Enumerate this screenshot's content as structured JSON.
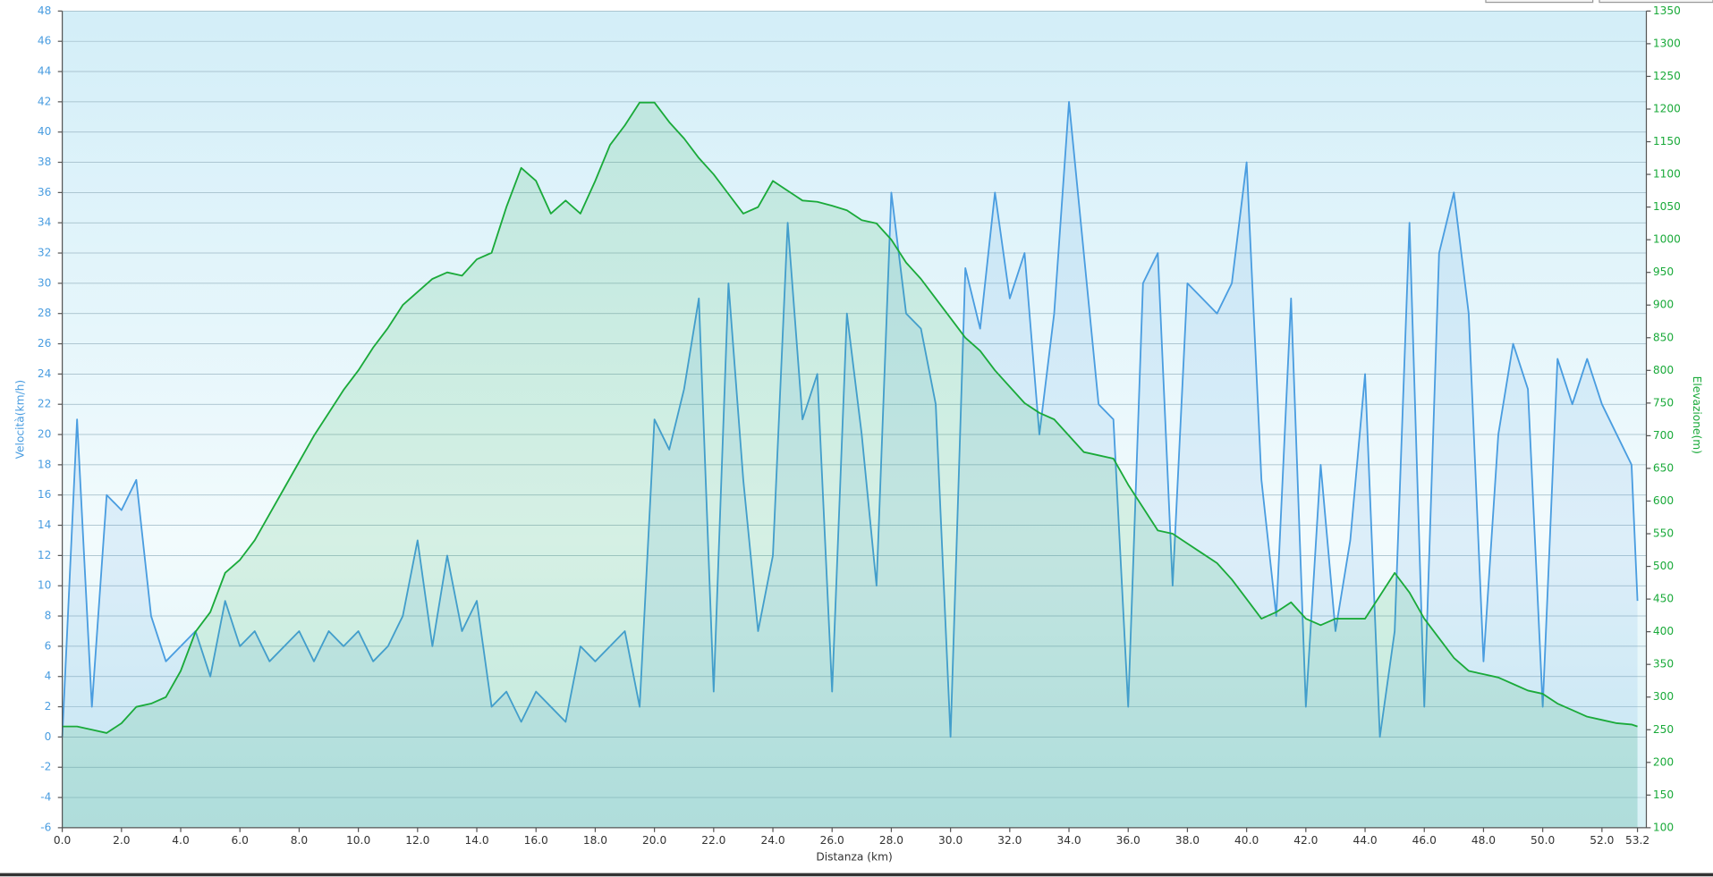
{
  "chart_data": {
    "type": "line",
    "x_label": "Distanza  (km)",
    "y_label": "Velocità(km/h)",
    "y2_label": "Elevazione(m)",
    "x": [
      0,
      0.5,
      1,
      1.5,
      2,
      2.5,
      3,
      3.5,
      4,
      4.5,
      5,
      5.5,
      6,
      6.5,
      7,
      7.5,
      8,
      8.5,
      9,
      9.5,
      10,
      10.5,
      11,
      11.5,
      12,
      12.5,
      13,
      13.5,
      14,
      14.5,
      15,
      15.5,
      16,
      16.5,
      17,
      17.5,
      18,
      18.5,
      19,
      19.5,
      20,
      20.5,
      21,
      21.5,
      22,
      22.5,
      23,
      23.5,
      24,
      24.5,
      25,
      25.5,
      26,
      26.5,
      27,
      27.5,
      28,
      28.5,
      29,
      29.5,
      30,
      30.5,
      31,
      31.5,
      32,
      32.5,
      33,
      33.5,
      34,
      34.5,
      35,
      35.5,
      36,
      36.5,
      37,
      37.5,
      38,
      38.5,
      39,
      39.5,
      40,
      40.5,
      41,
      41.5,
      42,
      42.5,
      43,
      43.5,
      44,
      44.5,
      45,
      45.5,
      46,
      46.5,
      47,
      47.5,
      48,
      48.5,
      49,
      49.5,
      50,
      50.5,
      51,
      51.5,
      52,
      52.5,
      53,
      53.2
    ],
    "series": [
      {
        "name": "Velocità",
        "color": "#4a9de0",
        "values": [
          0,
          21,
          2,
          16,
          15,
          17,
          8,
          5,
          6,
          7,
          4,
          9,
          6,
          7,
          5,
          6,
          7,
          5,
          7,
          6,
          7,
          5,
          6,
          8,
          13,
          6,
          12,
          7,
          9,
          2,
          3,
          1,
          3,
          2,
          1,
          6,
          5,
          6,
          7,
          2,
          21,
          19,
          23,
          29,
          3,
          30,
          17,
          7,
          12,
          34,
          21,
          24,
          3,
          28,
          20,
          10,
          36,
          28,
          27,
          22,
          0,
          31,
          27,
          36,
          29,
          32,
          20,
          28,
          42,
          32,
          22,
          21,
          2,
          30,
          32,
          10,
          30,
          29,
          28,
          30,
          38,
          17,
          8,
          29,
          2,
          18,
          7,
          13,
          24,
          0,
          7,
          34,
          2,
          32,
          36,
          28,
          5,
          20,
          26,
          23,
          2,
          25,
          22,
          25,
          22,
          20,
          18,
          9
        ]
      },
      {
        "name": "Elevazione",
        "color": "#1aaa3a",
        "axis": "y2",
        "values": [
          255,
          255,
          250,
          245,
          260,
          285,
          290,
          300,
          340,
          400,
          430,
          490,
          510,
          540,
          580,
          620,
          660,
          700,
          735,
          770,
          800,
          835,
          865,
          900,
          920,
          940,
          950,
          945,
          970,
          980,
          1050,
          1110,
          1090,
          1040,
          1060,
          1040,
          1090,
          1145,
          1175,
          1210,
          1210,
          1180,
          1155,
          1125,
          1100,
          1070,
          1040,
          1050,
          1090,
          1075,
          1060,
          1058,
          1052,
          1045,
          1030,
          1025,
          1000,
          965,
          940,
          910,
          880,
          850,
          830,
          800,
          775,
          750,
          735,
          725,
          700,
          675,
          670,
          665,
          625,
          590,
          555,
          550,
          535,
          520,
          505,
          480,
          450,
          420,
          430,
          445,
          420,
          410,
          420,
          420,
          420,
          455,
          490,
          460,
          420,
          390,
          360,
          340,
          335,
          330,
          320,
          310,
          305,
          290,
          280,
          270,
          265,
          260,
          258,
          255
        ]
      }
    ],
    "xlim": [
      0,
      53.5
    ],
    "xticks": [
      {
        "value": 0,
        "label": "0.0"
      },
      {
        "value": 2,
        "label": "2.0"
      },
      {
        "value": 4,
        "label": "4.0"
      },
      {
        "value": 6,
        "label": "6.0"
      },
      {
        "value": 8,
        "label": "8.0"
      },
      {
        "value": 10,
        "label": "10.0"
      },
      {
        "value": 12,
        "label": "12.0"
      },
      {
        "value": 14,
        "label": "14.0"
      },
      {
        "value": 16,
        "label": "16.0"
      },
      {
        "value": 18,
        "label": "18.0"
      },
      {
        "value": 20,
        "label": "20.0"
      },
      {
        "value": 22,
        "label": "22.0"
      },
      {
        "value": 24,
        "label": "24.0"
      },
      {
        "value": 26,
        "label": "26.0"
      },
      {
        "value": 28,
        "label": "28.0"
      },
      {
        "value": 30,
        "label": "30.0"
      },
      {
        "value": 32,
        "label": "32.0"
      },
      {
        "value": 34,
        "label": "34.0"
      },
      {
        "value": 36,
        "label": "36.0"
      },
      {
        "value": 38,
        "label": "38.0"
      },
      {
        "value": 40,
        "label": "40.0"
      },
      {
        "value": 42,
        "label": "42.0"
      },
      {
        "value": 44,
        "label": "44.0"
      },
      {
        "value": 46,
        "label": "46.0"
      },
      {
        "value": 48,
        "label": "48.0"
      },
      {
        "value": 50,
        "label": "50.0"
      },
      {
        "value": 52,
        "label": "52.0"
      },
      53.2
    ],
    "ylim": [
      -6,
      48
    ],
    "yticks": [
      -6,
      -4,
      -2,
      0,
      2,
      4,
      6,
      8,
      10,
      12,
      14,
      16,
      18,
      20,
      22,
      24,
      26,
      28,
      30,
      32,
      34,
      36,
      38,
      40,
      42,
      44,
      46,
      48
    ],
    "y2lim": [
      100,
      1350
    ],
    "y2ticks": [
      100,
      150,
      200,
      250,
      300,
      350,
      400,
      450,
      500,
      550,
      600,
      650,
      700,
      750,
      800,
      850,
      900,
      950,
      1000,
      1050,
      1100,
      1150,
      1200,
      1250,
      1300,
      1350
    ],
    "grid": true
  }
}
